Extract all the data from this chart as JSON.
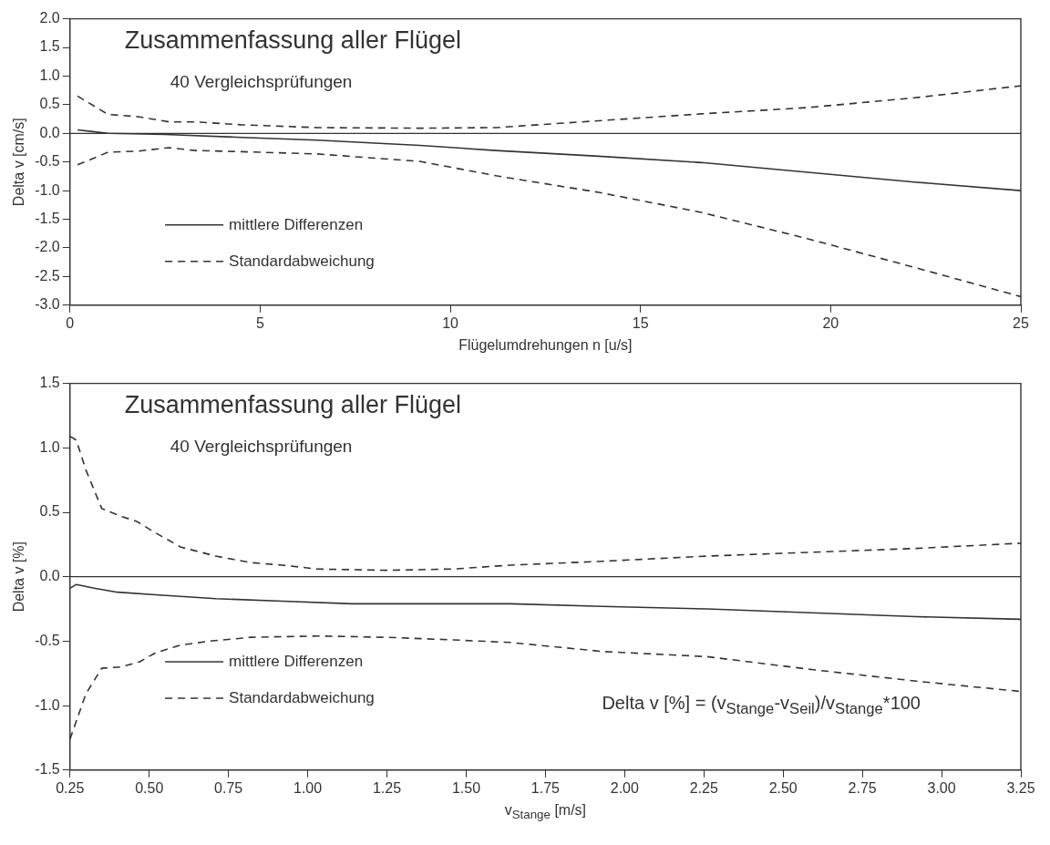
{
  "chart_data": [
    {
      "type": "line",
      "title": "Zusammenfassung aller Flügel",
      "subtitle": "40 Vergleichsprüfungen",
      "xlabel": "Flügelumdrehungen n [u/s]",
      "ylabel": "Delta v [cm/s]",
      "marker": "none",
      "legend": "bottom left",
      "xlim": [
        0,
        25
      ],
      "xticks": [
        0,
        5,
        10,
        15,
        20,
        25
      ],
      "ylim": [
        -3,
        2
      ],
      "yticks": [
        {
          "value": 2,
          "label": "2.0"
        },
        {
          "value": 1.5,
          "label": "1.5"
        },
        {
          "value": 1,
          "label": "1.0"
        },
        {
          "value": 0.5,
          "label": "0.5"
        },
        {
          "value": 0,
          "label": "0.0"
        },
        {
          "value": -0.5,
          "label": "-0.5"
        },
        {
          "value": -1,
          "label": "-1.0"
        },
        {
          "value": -1.5,
          "label": "-1.5"
        },
        {
          "value": -2,
          "label": "-2.0"
        },
        {
          "value": -2.5,
          "label": "-2.5"
        },
        {
          "value": -3,
          "label": "-3.0"
        }
      ],
      "ref_lines": [
        {
          "axis": "y",
          "value": 0,
          "color": "#333333",
          "line_style": "solid"
        }
      ],
      "series": [
        {
          "name": "mittlere Differenzen",
          "color": "#333333",
          "line_style": "solid",
          "x": [
            0.2,
            0.6,
            1,
            2.5,
            4.5,
            6.5,
            9.2,
            11.2,
            13.9,
            16.6,
            19.4,
            22.2,
            25
          ],
          "values": [
            0.06,
            0.03,
            0,
            -0.02,
            -0.07,
            -0.12,
            -0.21,
            -0.3,
            -0.4,
            -0.51,
            -0.68,
            -0.85,
            -1.0
          ]
        },
        {
          "name": "Standardabweichung",
          "color": "#333333",
          "line_style": "dashed",
          "x": [
            0.2,
            1,
            1.8,
            2.6,
            3.3,
            4.5,
            6.5,
            9.2,
            11.2,
            13.9,
            16.6,
            19.4,
            22.2,
            25
          ],
          "values": [
            0.65,
            0.33,
            0.29,
            0.2,
            0.2,
            0.15,
            0.1,
            0.09,
            0.1,
            0.22,
            0.34,
            0.45,
            0.62,
            0.83
          ]
        },
        {
          "color": "#333333",
          "line_style": "dashed",
          "x": [
            0.2,
            1,
            1.8,
            2.6,
            3.3,
            4.5,
            6.5,
            9.2,
            11.2,
            13.9,
            16.6,
            19.4,
            22.2,
            25
          ],
          "values": [
            -0.55,
            -0.33,
            -0.31,
            -0.25,
            -0.3,
            -0.32,
            -0.36,
            -0.49,
            -0.74,
            -1.03,
            -1.38,
            -1.84,
            -2.34,
            -2.85
          ]
        }
      ]
    },
    {
      "type": "line",
      "title": "Zusammenfassung aller Flügel",
      "subtitle": "40 Vergleichsprüfungen",
      "xlabel": "v$_{Stange}$ [m/s]",
      "ylabel": "Delta v [%]",
      "marker": "none",
      "legend": "bottom left",
      "annotations": [
        "Delta v [%] = (v$_{Stange}$-v$_{Seil}$)/v$_{Stange}$*100"
      ],
      "xlim": [
        0.25,
        3.25
      ],
      "xticks": [
        {
          "value": 0.25,
          "label": "0.25"
        },
        {
          "value": 0.5,
          "label": "0.50"
        },
        {
          "value": 0.75,
          "label": "0.75"
        },
        {
          "value": 1,
          "label": "1.00"
        },
        {
          "value": 1.25,
          "label": "1.25"
        },
        {
          "value": 1.5,
          "label": "1.50"
        },
        {
          "value": 1.75,
          "label": "1.75"
        },
        {
          "value": 2,
          "label": "2.00"
        },
        {
          "value": 2.25,
          "label": "2.25"
        },
        {
          "value": 2.5,
          "label": "2.50"
        },
        {
          "value": 2.75,
          "label": "2.75"
        },
        {
          "value": 3,
          "label": "3.00"
        },
        {
          "value": 3.25,
          "label": "3.25"
        }
      ],
      "ylim": [
        -1.5,
        1.5
      ],
      "yticks": [
        {
          "value": 1.5,
          "label": "1.5"
        },
        {
          "value": 1,
          "label": "1.0"
        },
        {
          "value": 0.5,
          "label": "0.5"
        },
        {
          "value": 0,
          "label": "0.0"
        },
        {
          "value": -0.5,
          "label": "-0.5"
        },
        {
          "value": -1,
          "label": "-1.0"
        },
        {
          "value": -1.5,
          "label": "-1.5"
        }
      ],
      "ref_lines": [
        {
          "axis": "y",
          "value": 0,
          "color": "#333333",
          "line_style": "solid"
        }
      ],
      "series": [
        {
          "name": "mittlere Differenzen",
          "color": "#333333",
          "line_style": "solid",
          "x": [
            0.25,
            0.27,
            0.33,
            0.4,
            0.52,
            0.71,
            0.92,
            1.14,
            1.35,
            1.64,
            1.93,
            2.26,
            2.59,
            2.92,
            3.25
          ],
          "values": [
            -0.09,
            -0.06,
            -0.09,
            -0.12,
            -0.14,
            -0.17,
            -0.19,
            -0.21,
            -0.21,
            -0.21,
            -0.23,
            -0.25,
            -0.28,
            -0.31,
            -0.33
          ]
        },
        {
          "name": "Standardabweichung",
          "color": "#333333",
          "line_style": "dashed",
          "x": [
            0.25,
            0.27,
            0.3,
            0.35,
            0.41,
            0.46,
            0.52,
            0.6,
            0.71,
            0.82,
            0.92,
            1.03,
            1.25,
            1.46,
            1.64,
            1.93,
            2.26,
            2.59,
            2.92,
            3.25
          ],
          "values": [
            1.09,
            1.06,
            0.83,
            0.53,
            0.47,
            0.43,
            0.34,
            0.23,
            0.16,
            0.11,
            0.09,
            0.06,
            0.05,
            0.06,
            0.09,
            0.12,
            0.16,
            0.19,
            0.22,
            0.26
          ]
        },
        {
          "color": "#333333",
          "line_style": "dashed",
          "x": [
            0.25,
            0.3,
            0.35,
            0.41,
            0.47,
            0.52,
            0.6,
            0.69,
            0.82,
            1.03,
            1.25,
            1.46,
            1.64,
            1.93,
            2.26,
            2.59,
            2.92,
            3.25
          ],
          "values": [
            -1.26,
            -0.91,
            -0.71,
            -0.7,
            -0.66,
            -0.59,
            -0.53,
            -0.5,
            -0.47,
            -0.46,
            -0.47,
            -0.49,
            -0.51,
            -0.58,
            -0.62,
            -0.72,
            -0.81,
            -0.89
          ]
        }
      ]
    }
  ]
}
